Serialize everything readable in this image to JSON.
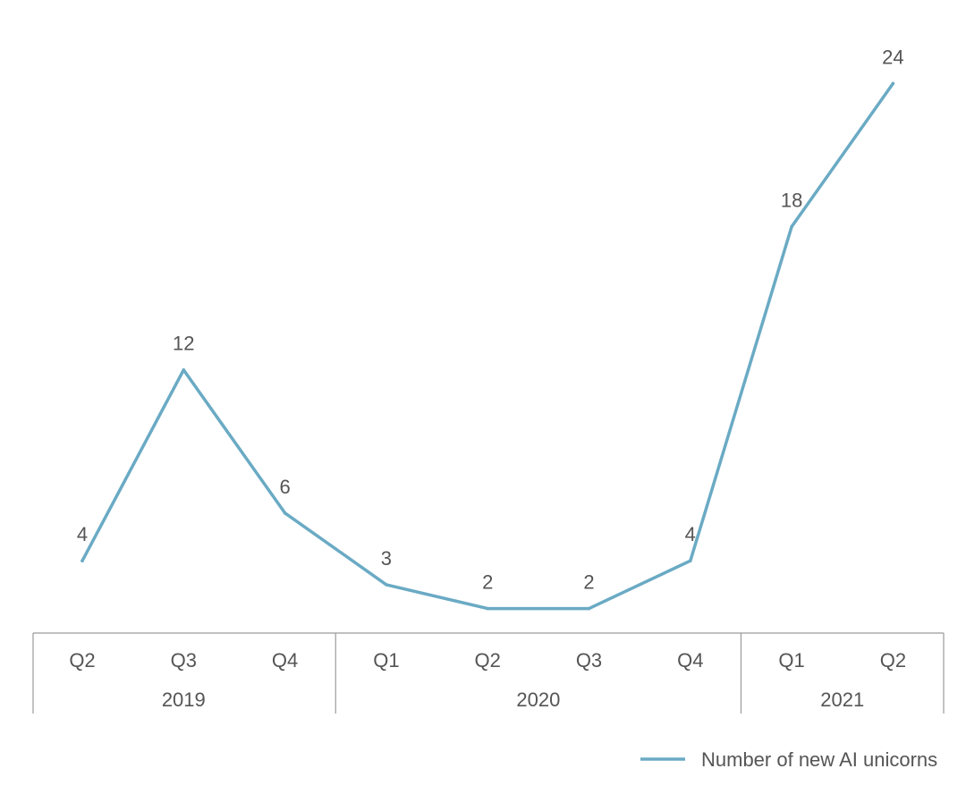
{
  "chart_data": {
    "type": "line",
    "categories": [
      "Q2",
      "Q3",
      "Q4",
      "Q1",
      "Q2",
      "Q3",
      "Q4",
      "Q1",
      "Q2"
    ],
    "groups": [
      {
        "label": "2019",
        "count": 3
      },
      {
        "label": "2020",
        "count": 4
      },
      {
        "label": "2021",
        "count": 2
      }
    ],
    "series": [
      {
        "name": "Number of new AI unicorns",
        "values": [
          4,
          12,
          6,
          3,
          2,
          2,
          4,
          18,
          24
        ],
        "color": "#6aaac4"
      }
    ],
    "data_labels": [
      "4",
      "12",
      "6",
      "3",
      "2",
      "2",
      "4",
      "18",
      "24"
    ],
    "ylim": [
      0,
      26
    ],
    "grid": false,
    "legend_position": "bottom-right",
    "colors": {
      "line": "#6aaac4",
      "text": "#555555",
      "axis": "#9a9a9a"
    }
  }
}
